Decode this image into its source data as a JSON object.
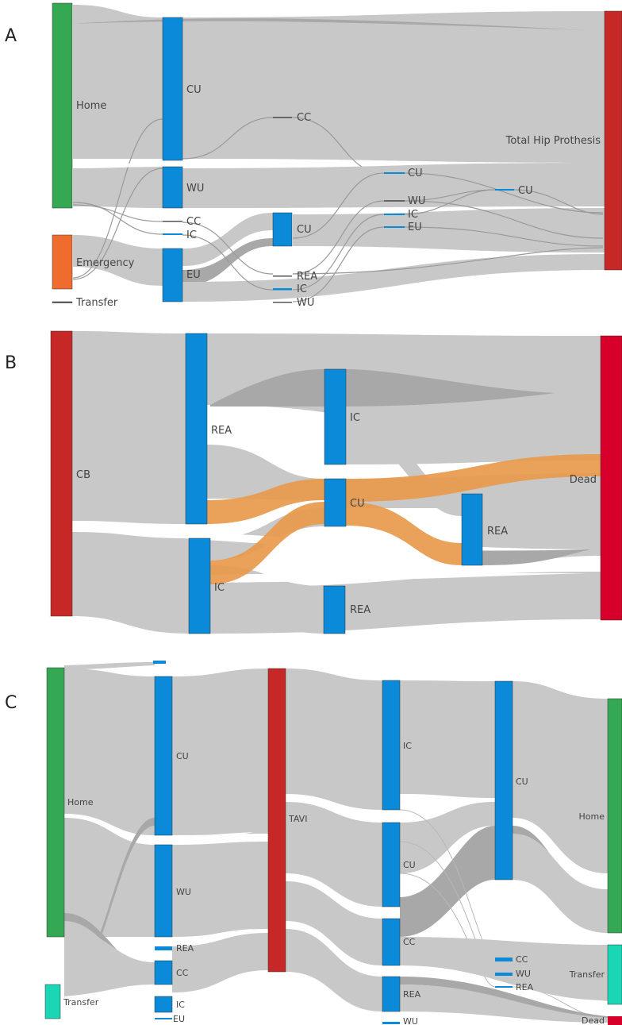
{
  "colors": {
    "green": "#34a853",
    "orange": "#ef6c2e",
    "blue": "#0a8ad8",
    "red": "#c62828",
    "red_dead": "#d6002a",
    "teal": "#1ad6b4",
    "link_grey": "#c8c8c8",
    "link_highlight": "#e89a4c"
  },
  "panels": [
    {
      "letter": "A",
      "labels": {
        "home": "Home",
        "emergency": "Emergency",
        "transfer": "Transfer",
        "s1_cu": "CU",
        "s1_wu": "WU",
        "s1_cc": "CC",
        "s1_ic": "IC",
        "s1_eu": "EU",
        "s2_cc": "CC",
        "s2_cu": "CU",
        "s2_rea": "REA",
        "s2_ic": "IC",
        "s2_wu": "WU",
        "s3_cu": "CU",
        "s3_wu": "WU",
        "s3_ic": "IC",
        "s3_eu": "EU",
        "s4_cu": "CU",
        "target": "Total Hip Prothesis"
      }
    },
    {
      "letter": "B",
      "labels": {
        "cb": "CB",
        "s1_rea": "REA",
        "s1_ic": "IC",
        "s2_ic": "IC",
        "s2_cu": "CU",
        "s2_rea": "REA",
        "s3_rea": "REA",
        "dead": "Dead"
      }
    },
    {
      "letter": "C",
      "labels": {
        "home": "Home",
        "transfer": "Transfer",
        "s1_cu": "CU",
        "s1_wu": "WU",
        "s1_rea": "REA",
        "s1_cc": "CC",
        "s1_ic": "IC",
        "s1_eu": "EU",
        "tavi": "TAVI",
        "s3_ic": "IC",
        "s3_cu": "CU",
        "s3_cc": "CC",
        "s3_rea": "REA",
        "s3_wu": "WU",
        "s4_cu": "CU",
        "s4_cc": "CC",
        "s4_wu": "WU",
        "s4_rea": "REA",
        "out_home": "Home",
        "out_transfer": "Transfer",
        "out_dead": "Dead"
      }
    }
  ]
}
